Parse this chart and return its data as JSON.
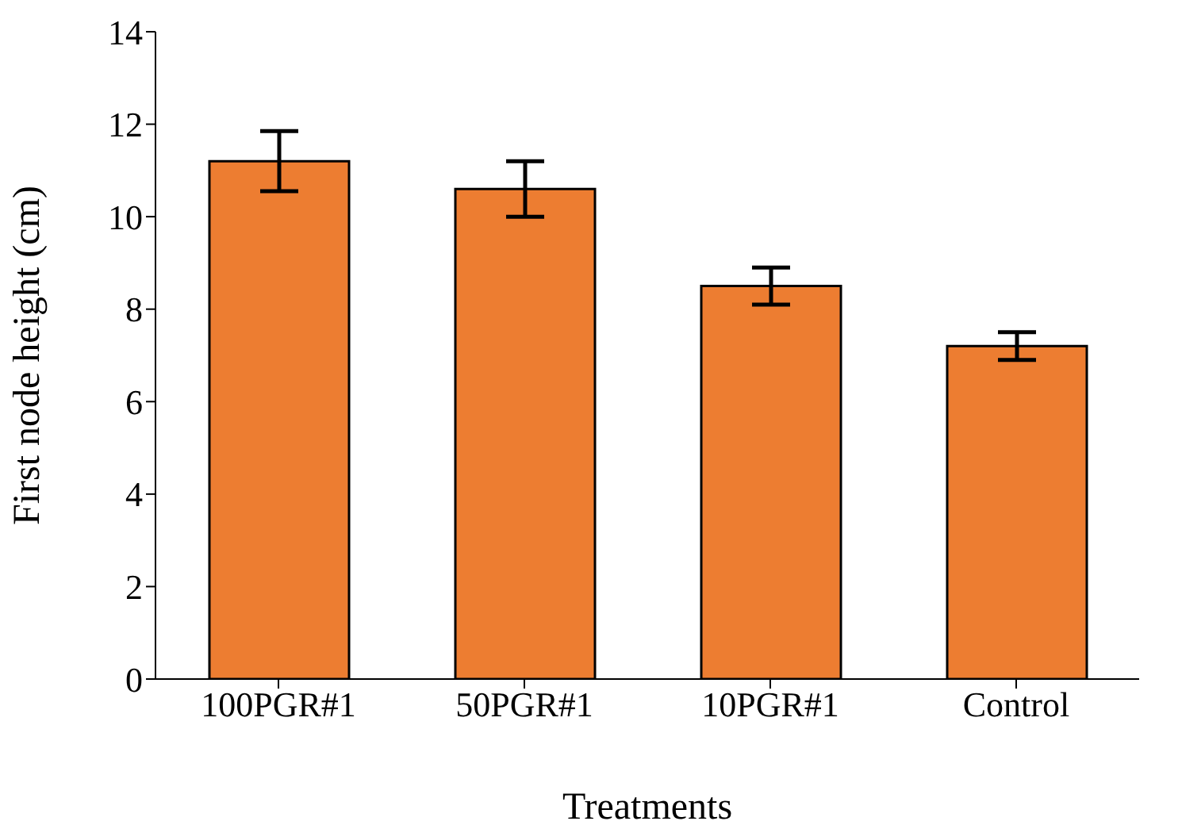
{
  "chart_data": {
    "type": "bar",
    "xlabel": "Treatments",
    "ylabel": "First node height (cm)",
    "categories": [
      "100PGR#1",
      "50PGR#1",
      "10PGR#1",
      "Control"
    ],
    "values": [
      11.2,
      10.6,
      8.5,
      7.2
    ],
    "errors": [
      0.65,
      0.6,
      0.4,
      0.3
    ],
    "color": "#ed7d31",
    "ylim": [
      0,
      14
    ],
    "yticks": [
      0,
      2,
      4,
      6,
      8,
      10,
      12,
      14
    ],
    "grid": false,
    "legend": false
  }
}
